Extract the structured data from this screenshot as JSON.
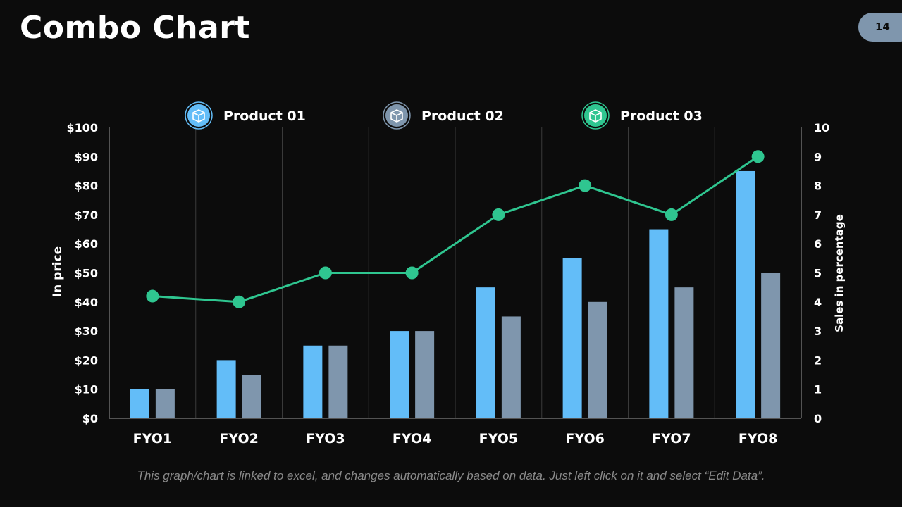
{
  "slide": {
    "title": "Combo Chart",
    "page_number": "14",
    "footnote": "This graph/chart is linked to excel, and changes automatically based on data. Just left click on it and select “Edit Data”."
  },
  "colors": {
    "background": "#0c0c0c",
    "product_01": "#63bdf8",
    "product_02": "#7f96ad",
    "product_03": "#2fc690",
    "grid": "#3a3a3a",
    "axis": "#9a9a9a",
    "badge": "#7f96ad"
  },
  "chart_data": {
    "type": "combo",
    "categories": [
      "FYO1",
      "FYO2",
      "FYO3",
      "FYO4",
      "FYO5",
      "FYO6",
      "FYO7",
      "FYO8"
    ],
    "series": [
      {
        "name": "Product 01",
        "type": "bar",
        "axis": "left",
        "icon": "box-icon",
        "values": [
          10,
          20,
          25,
          30,
          45,
          55,
          65,
          85
        ]
      },
      {
        "name": "Product 02",
        "type": "bar",
        "axis": "left",
        "icon": "box-icon",
        "values": [
          10,
          15,
          25,
          30,
          35,
          40,
          45,
          50
        ]
      },
      {
        "name": "Product 03",
        "type": "line",
        "axis": "right",
        "icon": "box-icon",
        "values": [
          4.2,
          4,
          5,
          5,
          7,
          8,
          7,
          9
        ]
      }
    ],
    "left_axis": {
      "label": "In price",
      "range": [
        0,
        100
      ],
      "ticks": [
        "$0",
        "$10",
        "$20",
        "$30",
        "$40",
        "$50",
        "$60",
        "$70",
        "$80",
        "$90",
        "$100"
      ]
    },
    "right_axis": {
      "label": "Sales in percentage",
      "range": [
        0,
        10
      ],
      "ticks": [
        "0",
        "1",
        "2",
        "3",
        "4",
        "5",
        "6",
        "7",
        "8",
        "9",
        "10"
      ]
    },
    "legend_position": "top"
  }
}
